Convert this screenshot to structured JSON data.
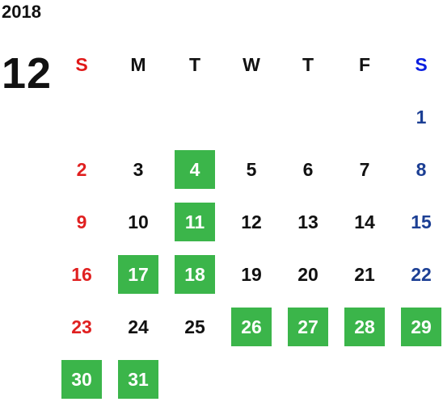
{
  "header": {
    "year": "2018",
    "month": "12"
  },
  "weekdays": [
    "S",
    "M",
    "T",
    "W",
    "T",
    "F",
    "S"
  ],
  "days": [
    {
      "day": 1,
      "highlighted": false
    },
    {
      "day": 2,
      "highlighted": false
    },
    {
      "day": 3,
      "highlighted": false
    },
    {
      "day": 4,
      "highlighted": true
    },
    {
      "day": 5,
      "highlighted": false
    },
    {
      "day": 6,
      "highlighted": false
    },
    {
      "day": 7,
      "highlighted": false
    },
    {
      "day": 8,
      "highlighted": false
    },
    {
      "day": 9,
      "highlighted": false
    },
    {
      "day": 10,
      "highlighted": false
    },
    {
      "day": 11,
      "highlighted": true
    },
    {
      "day": 12,
      "highlighted": false
    },
    {
      "day": 13,
      "highlighted": false
    },
    {
      "day": 14,
      "highlighted": false
    },
    {
      "day": 15,
      "highlighted": false
    },
    {
      "day": 16,
      "highlighted": false
    },
    {
      "day": 17,
      "highlighted": true
    },
    {
      "day": 18,
      "highlighted": true
    },
    {
      "day": 19,
      "highlighted": false
    },
    {
      "day": 20,
      "highlighted": false
    },
    {
      "day": 21,
      "highlighted": false
    },
    {
      "day": 22,
      "highlighted": false
    },
    {
      "day": 23,
      "highlighted": false
    },
    {
      "day": 24,
      "highlighted": false
    },
    {
      "day": 25,
      "highlighted": false
    },
    {
      "day": 26,
      "highlighted": true
    },
    {
      "day": 27,
      "highlighted": true
    },
    {
      "day": 28,
      "highlighted": true
    },
    {
      "day": 29,
      "highlighted": true
    },
    {
      "day": 30,
      "highlighted": true
    },
    {
      "day": 31,
      "highlighted": true
    }
  ]
}
